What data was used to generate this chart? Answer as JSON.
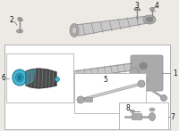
{
  "bg_color": "#ede9e4",
  "box_color": "#ffffff",
  "box_border": "#b0b0b0",
  "part_color_light": "#c8c8c8",
  "part_color_mid": "#aaaaaa",
  "part_color_dark": "#888888",
  "highlight_blue": "#4ab8d4",
  "highlight_blue_dark": "#1a7a9a",
  "highlight_blue_mid": "#3aa0bc",
  "boot_dark": "#4a7a4a",
  "boot_color": "#5a9a5a",
  "text_color": "#111111",
  "line_color": "#777777",
  "figsize": [
    2.0,
    1.47
  ],
  "dpi": 100
}
